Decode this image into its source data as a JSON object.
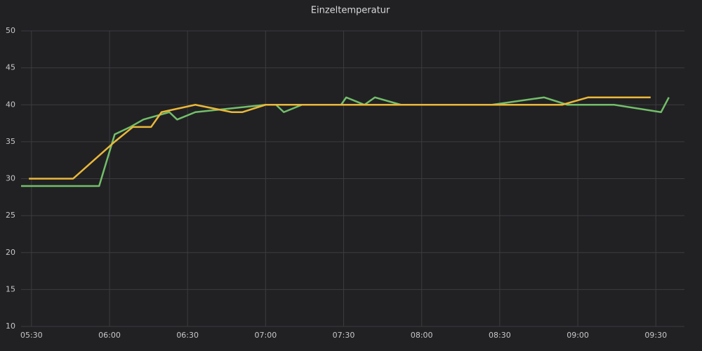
{
  "chart_data": {
    "type": "line",
    "title": "Einzeltemperatur",
    "xlim": [
      "05:26",
      "09:41"
    ],
    "xticks": [
      "05:30",
      "06:00",
      "06:30",
      "07:00",
      "07:30",
      "08:00",
      "08:30",
      "09:00",
      "09:30"
    ],
    "ylim": [
      10,
      50
    ],
    "yticks": [
      10,
      15,
      20,
      25,
      30,
      35,
      40,
      45,
      50
    ],
    "grid": true,
    "series": [
      {
        "color": "#73bf69",
        "x": [
          "05:26",
          "05:56",
          "06:02",
          "06:08",
          "06:13",
          "06:23",
          "06:26",
          "06:33",
          "07:00",
          "07:04",
          "07:07",
          "07:14",
          "07:29",
          "07:31",
          "07:38",
          "07:42",
          "07:52",
          "08:27",
          "08:47",
          "08:56",
          "09:14",
          "09:32",
          "09:35"
        ],
        "values": [
          29,
          29,
          36,
          37,
          38,
          39,
          38,
          39,
          40,
          40,
          39,
          40,
          40,
          41,
          40,
          41,
          40,
          40,
          41,
          40,
          40,
          39,
          41
        ]
      },
      {
        "color": "#eab839",
        "x": [
          "05:29",
          "05:46",
          "06:02",
          "06:09",
          "06:16",
          "06:20",
          "06:33",
          "06:47",
          "06:51",
          "07:00",
          "08:54",
          "09:04",
          "09:28"
        ],
        "values": [
          30,
          30,
          35,
          37,
          37,
          39,
          40,
          39,
          39,
          40,
          40,
          41,
          41
        ]
      }
    ]
  }
}
